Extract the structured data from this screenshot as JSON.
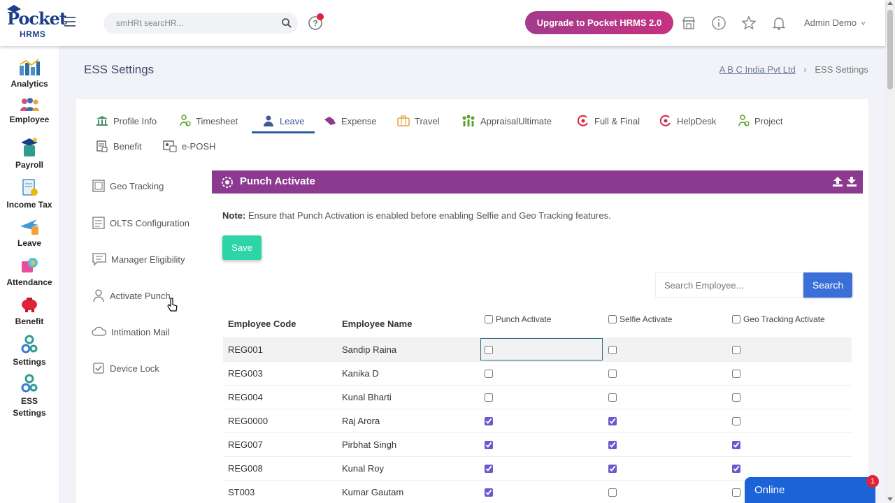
{
  "logo": {
    "top": "Pocket",
    "bottom": "HRMS"
  },
  "header": {
    "search_placeholder": "smHRt searcHR...",
    "upgrade_label": "Upgrade to Pocket HRMS 2.0",
    "user_name": "Admin Demo",
    "user_chevron": "˅"
  },
  "sidebar": {
    "items": [
      {
        "label": "Analytics",
        "icon": "analytics-icon"
      },
      {
        "label": "Employee",
        "icon": "employee-icon"
      },
      {
        "label": "Payroll",
        "icon": "payroll-icon"
      },
      {
        "label": "Income Tax",
        "icon": "income-tax-icon"
      },
      {
        "label": "Leave",
        "icon": "leave-icon"
      },
      {
        "label": "Attendance",
        "icon": "attendance-icon"
      },
      {
        "label": "Benefit",
        "icon": "benefit-icon"
      },
      {
        "label": "Settings",
        "icon": "settings-icon"
      },
      {
        "label": "ESS Settings",
        "icon": "ess-settings-icon"
      }
    ]
  },
  "page": {
    "title": "ESS Settings",
    "breadcrumb": {
      "company": "A B C India Pvt Ltd",
      "separator": "›",
      "current": "ESS Settings"
    }
  },
  "tabs": [
    {
      "label": "Profile Info"
    },
    {
      "label": "Timesheet"
    },
    {
      "label": "Leave"
    },
    {
      "label": "Expense"
    },
    {
      "label": "Travel"
    },
    {
      "label": "AppraisalUltimate"
    },
    {
      "label": "Full & Final"
    },
    {
      "label": "HelpDesk"
    },
    {
      "label": "Project"
    },
    {
      "label": "Benefit"
    },
    {
      "label": "e-POSH"
    }
  ],
  "subnav": [
    {
      "label": "Geo Tracking"
    },
    {
      "label": "OLTS Configuration"
    },
    {
      "label": "Manager Eligibility"
    },
    {
      "label": "Activate Punch"
    },
    {
      "label": "Intimation Mail"
    },
    {
      "label": "Device Lock"
    }
  ],
  "panel": {
    "title": "Punch Activate",
    "note_label": "Note:",
    "note_text": " Ensure that Punch Activation is enabled before enabling Selfie and Geo Tracking features.",
    "save_label": "Save",
    "search_placeholder": "Search Employee...",
    "search_label": "Search"
  },
  "table": {
    "columns": {
      "code": "Employee Code",
      "name": "Employee Name",
      "punch": "Punch Activate",
      "selfie": "Selfie Activate",
      "geo": "Geo Tracking Activate"
    },
    "rows": [
      {
        "code": "REG001",
        "name": "Sandip Raina",
        "punch": false,
        "selfie": false,
        "geo": false
      },
      {
        "code": "REG003",
        "name": "Kanika D",
        "punch": false,
        "selfie": false,
        "geo": false
      },
      {
        "code": "REG004",
        "name": "Kunal Bharti",
        "punch": false,
        "selfie": false,
        "geo": false
      },
      {
        "code": "REG0000",
        "name": "Raj Arora",
        "punch": true,
        "selfie": true,
        "geo": false
      },
      {
        "code": "REG007",
        "name": "Pirbhat Singh",
        "punch": true,
        "selfie": true,
        "geo": true
      },
      {
        "code": "REG008",
        "name": "Kunal Roy",
        "punch": true,
        "selfie": true,
        "geo": true
      },
      {
        "code": "ST003",
        "name": "Kumar Gautam",
        "punch": true,
        "selfie": false,
        "geo": false
      }
    ]
  },
  "chat": {
    "label": "Online",
    "badge": "1"
  },
  "colors": {
    "accent_purple": "#8c3a90",
    "save_green": "#2dd4a7",
    "search_blue": "#3b6fd8",
    "chat_blue": "#1c63d8"
  }
}
